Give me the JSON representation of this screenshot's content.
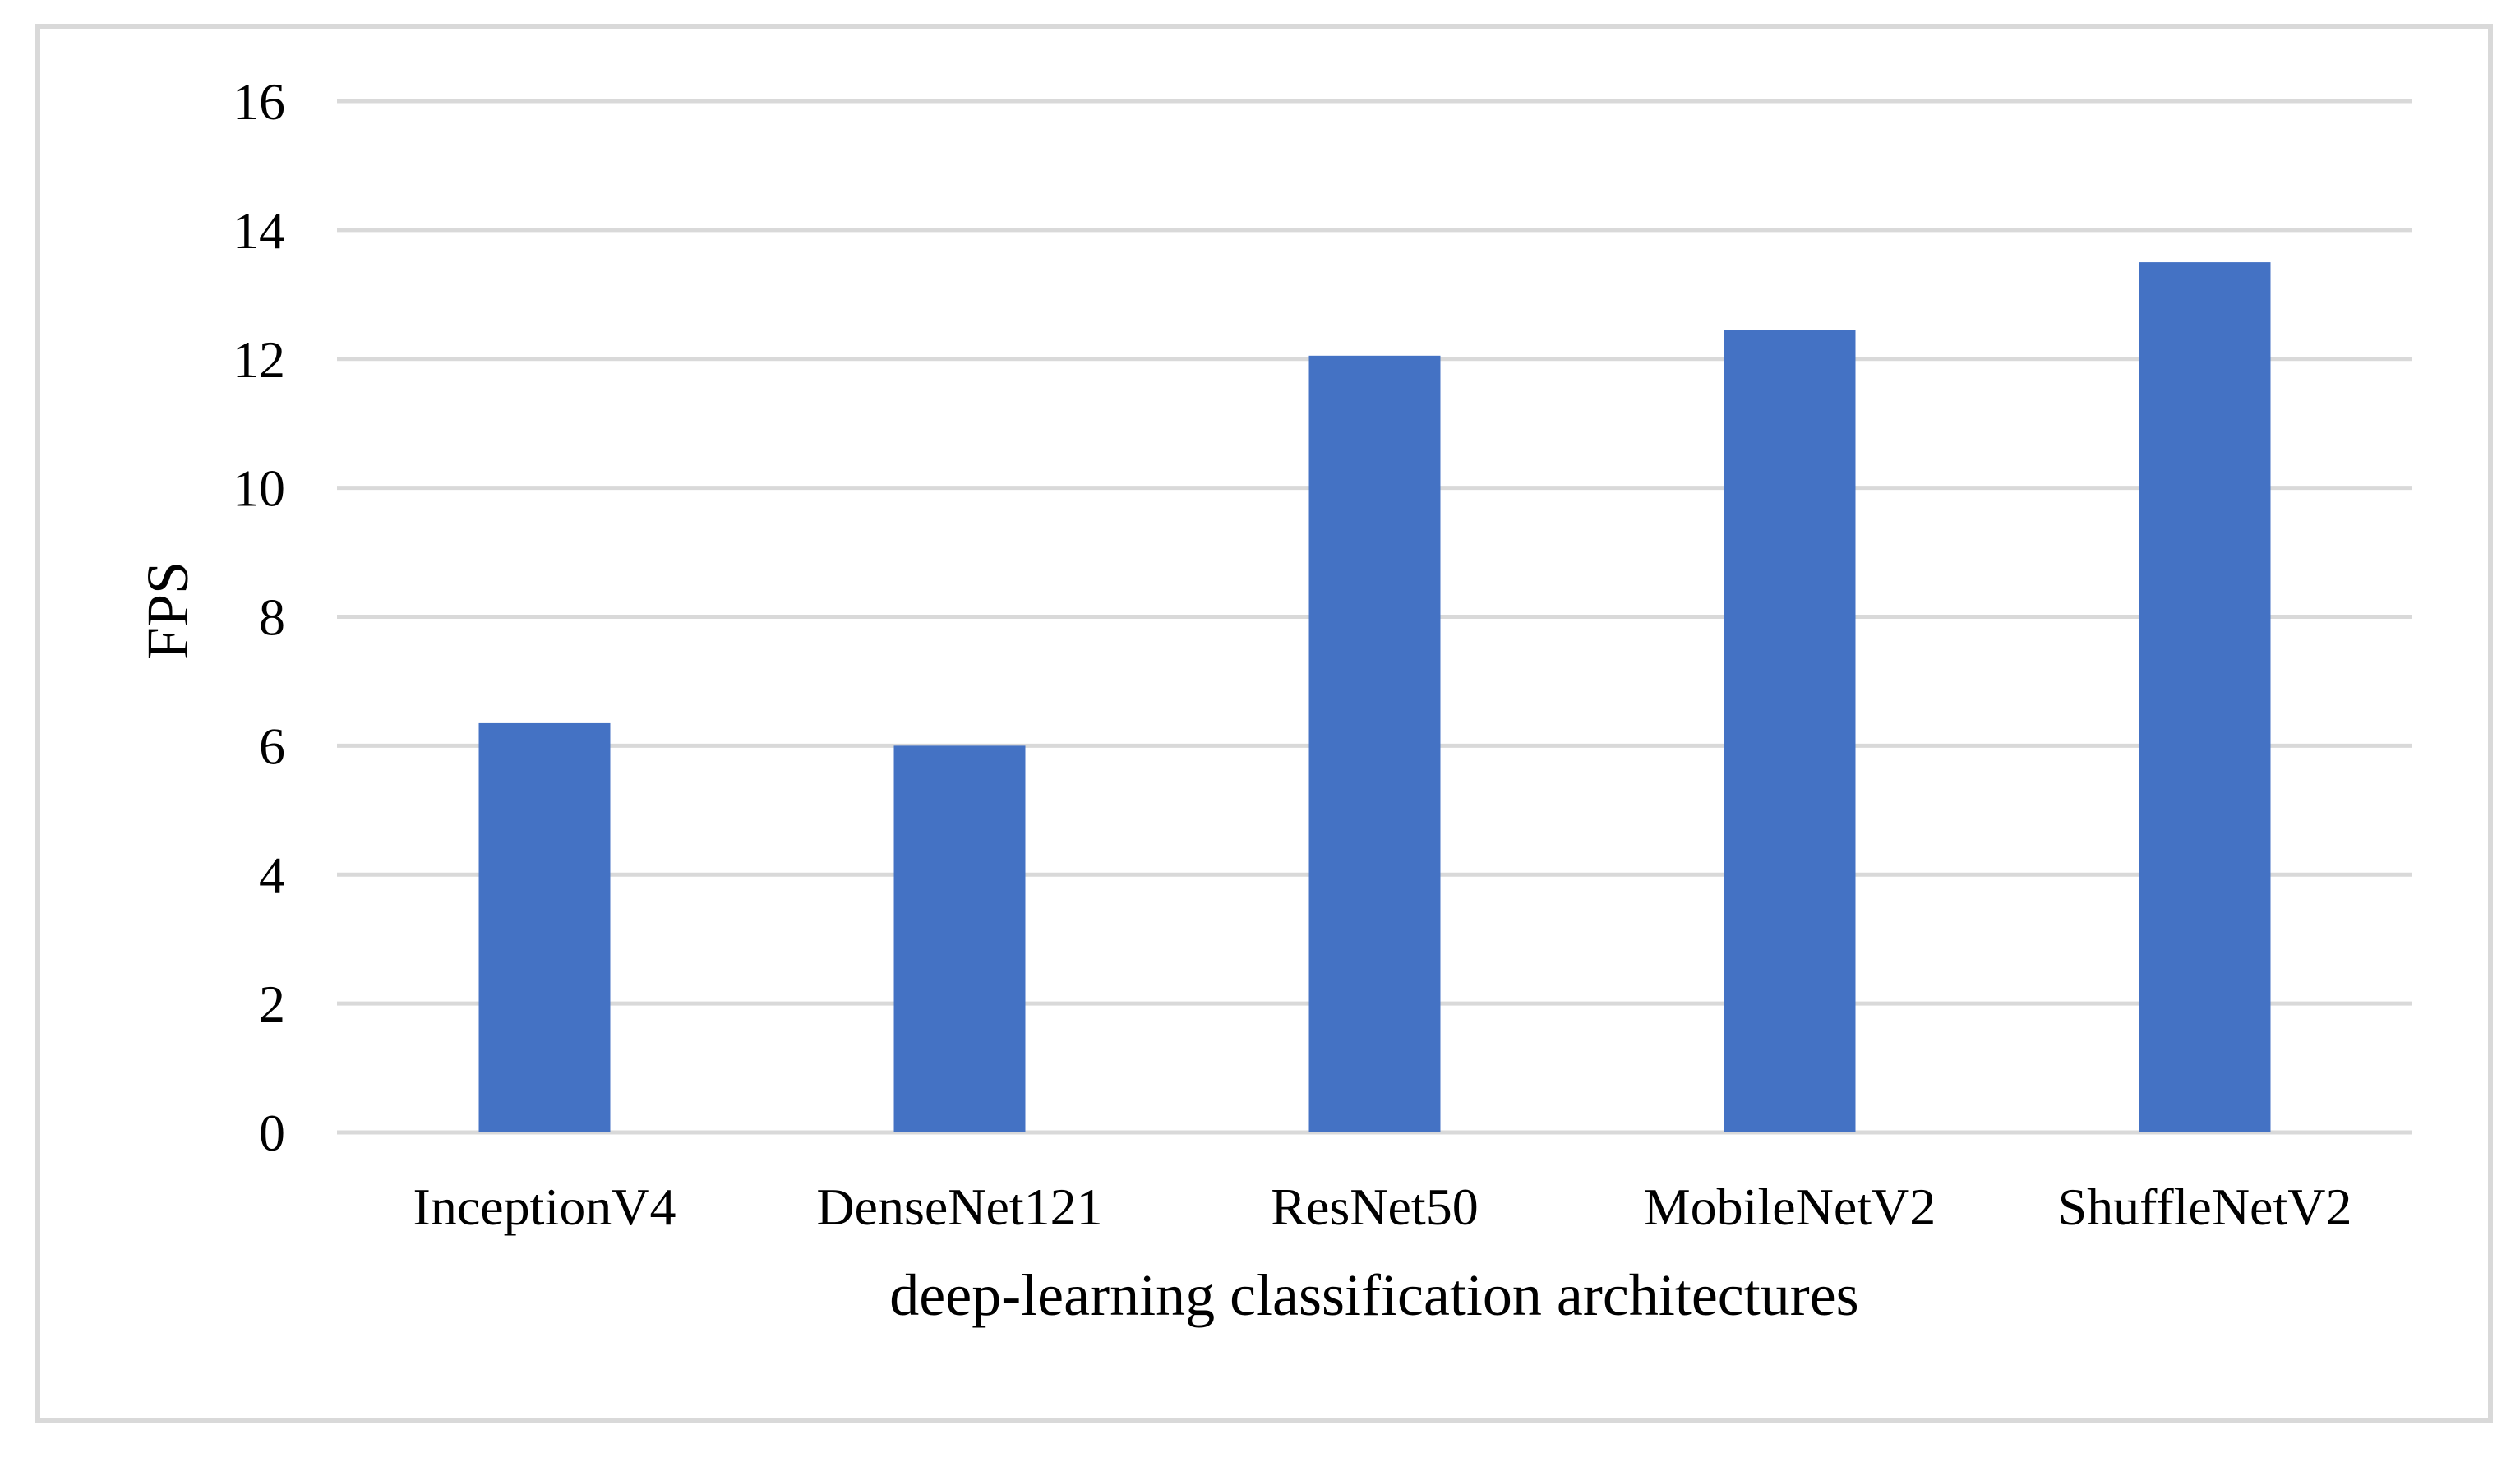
{
  "chart_data": {
    "type": "bar",
    "categories": [
      "InceptionV4",
      "DenseNet121",
      "ResNet50",
      "MobileNetV2",
      "ShuffleNetV2"
    ],
    "values": [
      6.35,
      6.0,
      12.05,
      12.45,
      13.5
    ],
    "xlabel": "deep-learning classification architectures",
    "ylabel": "FPS",
    "ylim": [
      0,
      16
    ],
    "yticks": [
      0,
      2,
      4,
      6,
      8,
      10,
      12,
      14,
      16
    ],
    "grid": true,
    "legend": "none",
    "colors": {
      "bar": "#4472C4",
      "grid": "#D9D9D9",
      "border": "#D9D9D9",
      "text": "#000000"
    }
  }
}
